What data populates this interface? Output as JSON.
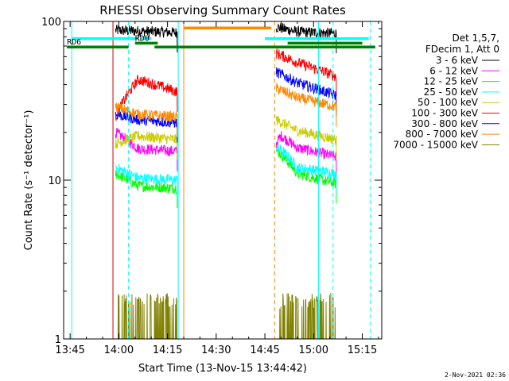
{
  "chart_data": {
    "type": "line",
    "title": "RHESSI Observing Summary Count Rates",
    "xlabel": "Start Time (13-Nov-15 13:44:42)",
    "ylabel": "Count Rate (s⁻¹ detector⁻¹)",
    "yscale": "log",
    "ylim": [
      1,
      100
    ],
    "xlim_minutes": [
      -2,
      96
    ],
    "x_ticks": [
      {
        "m": 0,
        "label": "13:45"
      },
      {
        "m": 15,
        "label": "14:00"
      },
      {
        "m": 30,
        "label": "14:15"
      },
      {
        "m": 45,
        "label": "14:30"
      },
      {
        "m": 60,
        "label": "14:45"
      },
      {
        "m": 75,
        "label": "15:00"
      },
      {
        "m": 90,
        "label": "15:15"
      }
    ],
    "y_ticks": [
      {
        "v": 1,
        "label": "1"
      },
      {
        "v": 10,
        "label": "10"
      },
      {
        "v": 100,
        "label": "100"
      }
    ],
    "legend_header": [
      "Det 1,5,7,",
      "FDecim 1, Att 0"
    ],
    "legend_position": "right",
    "intervals": [
      [
        14,
        33
      ],
      [
        63.5,
        82
      ]
    ],
    "series": [
      {
        "name": "3 - 6 keV",
        "color": "#000000",
        "a": [
          [
            14,
            88
          ],
          [
            33,
            85
          ]
        ],
        "b": [
          [
            63.5,
            92
          ],
          [
            70,
            86
          ],
          [
            82,
            84
          ]
        ]
      },
      {
        "name": "6 - 12 keV",
        "color": "#ff00ff",
        "a": [
          [
            14,
            20
          ],
          [
            21,
            15.8
          ],
          [
            33,
            15.2
          ]
        ],
        "b": [
          [
            63.5,
            17
          ],
          [
            65,
            19
          ],
          [
            70,
            16
          ],
          [
            82,
            14
          ]
        ]
      },
      {
        "name": "12 - 25 keV",
        "color": "#00ff00",
        "a": [
          [
            14,
            11
          ],
          [
            21,
            9.2
          ],
          [
            33,
            8.9
          ]
        ],
        "b": [
          [
            63.5,
            15.5
          ],
          [
            65,
            14.5
          ],
          [
            70,
            11
          ],
          [
            82,
            9.5
          ]
        ]
      },
      {
        "name": "25 - 50 keV",
        "color": "#00ffff",
        "a": [
          [
            14,
            12
          ],
          [
            21,
            10.3
          ],
          [
            33,
            10
          ]
        ],
        "b": [
          [
            63.5,
            16
          ],
          [
            65,
            15.5
          ],
          [
            70,
            12
          ],
          [
            82,
            11
          ]
        ]
      },
      {
        "name": "50 - 100 keV",
        "color": "#cccc00",
        "a": [
          [
            14,
            17
          ],
          [
            21,
            19
          ],
          [
            33,
            18
          ]
        ],
        "b": [
          [
            63.5,
            24
          ],
          [
            70,
            20.5
          ],
          [
            82,
            18
          ]
        ]
      },
      {
        "name": "100 - 300 keV",
        "color": "#ff0000",
        "a": [
          [
            14,
            25
          ],
          [
            21,
            43
          ],
          [
            33,
            36
          ]
        ],
        "b": [
          [
            63.5,
            63
          ],
          [
            70,
            55
          ],
          [
            82,
            45
          ]
        ]
      },
      {
        "name": "300 - 800 keV",
        "color": "#0000ff",
        "a": [
          [
            14,
            26
          ],
          [
            21,
            24
          ],
          [
            33,
            23
          ]
        ],
        "b": [
          [
            63.5,
            48
          ],
          [
            70,
            41
          ],
          [
            82,
            34
          ]
        ]
      },
      {
        "name": "800 - 7000 keV",
        "color": "#ff8800",
        "a": [
          [
            14,
            29
          ],
          [
            21,
            26
          ],
          [
            33,
            25
          ]
        ],
        "b": [
          [
            63.5,
            38
          ],
          [
            70,
            33
          ],
          [
            82,
            29
          ]
        ]
      },
      {
        "name": "7000 - 15000 keV",
        "color": "#808000",
        "a": [
          [
            14,
            1.5
          ],
          [
            33,
            1.5
          ]
        ],
        "b": [
          [
            63.5,
            1.5
          ],
          [
            82,
            1.5
          ]
        ]
      }
    ],
    "bars": [
      {
        "label": "",
        "color": "#00ffff",
        "y": 78,
        "segments": [
          [
            0.5,
            21
          ],
          [
            22,
            25
          ],
          [
            60,
            92
          ]
        ]
      },
      {
        "label": "RD0",
        "color": "#008000",
        "y": 73,
        "segments": [
          [
            20,
            27
          ],
          [
            67,
            90
          ]
        ]
      },
      {
        "label": "RD6",
        "color": "#008000",
        "y": 69,
        "segments": [
          [
            -1,
            18
          ],
          [
            26,
            94
          ]
        ]
      },
      {
        "label": "",
        "color": "#ff8800",
        "y": 91,
        "segments": [
          [
            35,
            62
          ]
        ]
      }
    ],
    "vlines": [
      {
        "m": 0.5,
        "color": "#00ffff",
        "style": "solid"
      },
      {
        "m": 13.2,
        "color": "#cc0000",
        "style": "solid"
      },
      {
        "m": 18,
        "color": "#00ffff",
        "style": "dashed"
      },
      {
        "m": 33.3,
        "color": "#00ffff",
        "style": "solid"
      },
      {
        "m": 35,
        "color": "#ff8800",
        "style": "solid"
      },
      {
        "m": 63,
        "color": "#ff8800",
        "style": "dashed"
      },
      {
        "m": 76.5,
        "color": "#00ffff",
        "style": "solid"
      },
      {
        "m": 81,
        "color": "#00ffff",
        "style": "dashed"
      },
      {
        "m": 92.5,
        "color": "#00ffff",
        "style": "dashed"
      }
    ]
  },
  "footer_date": "2-Nov-2021 02:36"
}
